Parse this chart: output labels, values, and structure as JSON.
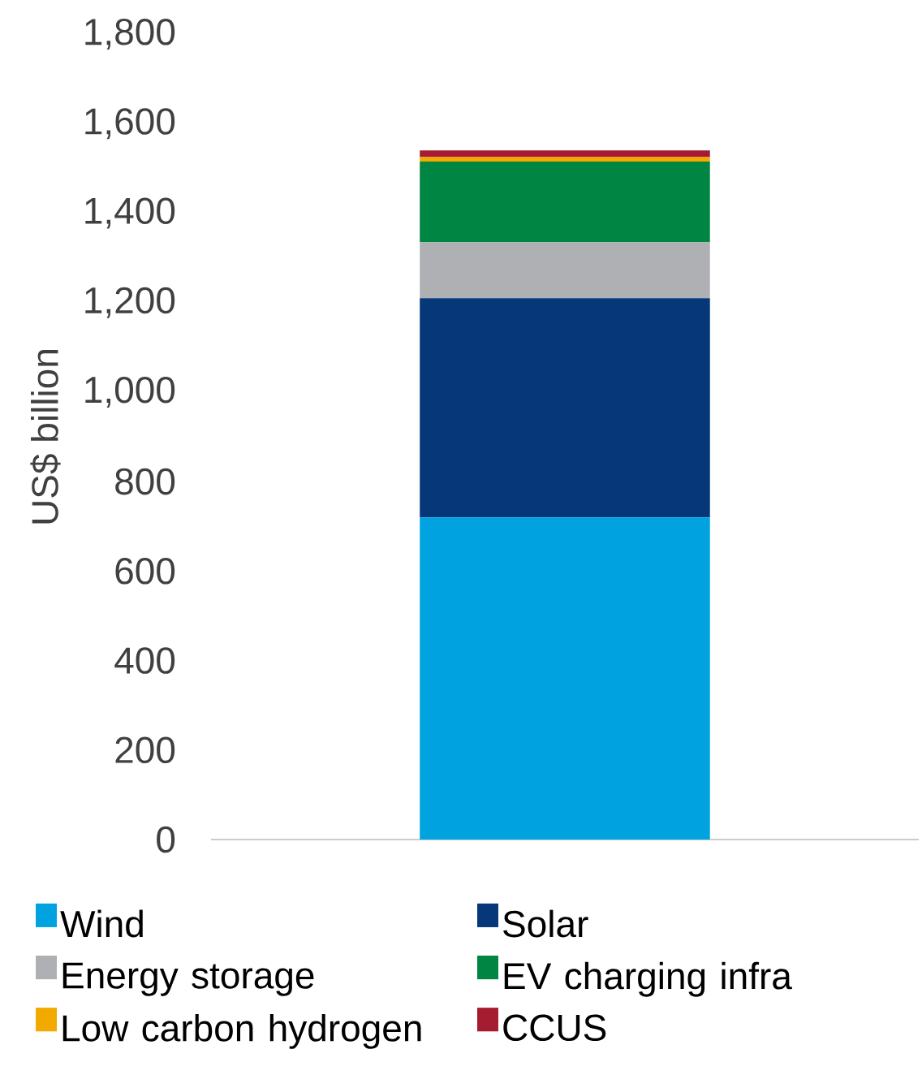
{
  "chart_data": {
    "type": "bar",
    "stacked": true,
    "categories": [
      null
    ],
    "ylabel": "US$ billion",
    "ylim": [
      0,
      1800
    ],
    "yticks": [
      0,
      200,
      400,
      600,
      800,
      {
        "value": 1000,
        "label": "1,000"
      },
      {
        "value": 1200,
        "label": "1,200"
      },
      {
        "value": 1400,
        "label": "1,400"
      },
      {
        "value": 1600,
        "label": "1,600"
      },
      {
        "value": 1800,
        "label": "1,800"
      }
    ],
    "legend": "bottom",
    "series": [
      {
        "name": "Wind",
        "color": "#00a3e0",
        "values": [
          720
        ]
      },
      {
        "name": "Solar",
        "color": "#063778",
        "values": [
          490
        ]
      },
      {
        "name": "Energy storage",
        "color": "#afb0b3",
        "values": [
          125
        ]
      },
      {
        "name": "EV charging infra",
        "color": "#008542",
        "values": [
          180
        ]
      },
      {
        "name": "Low carbon hydrogen",
        "color": "#f2a900",
        "values": [
          10
        ]
      },
      {
        "name": "CCUS",
        "color": "#a51c30",
        "values": [
          15
        ]
      }
    ]
  }
}
